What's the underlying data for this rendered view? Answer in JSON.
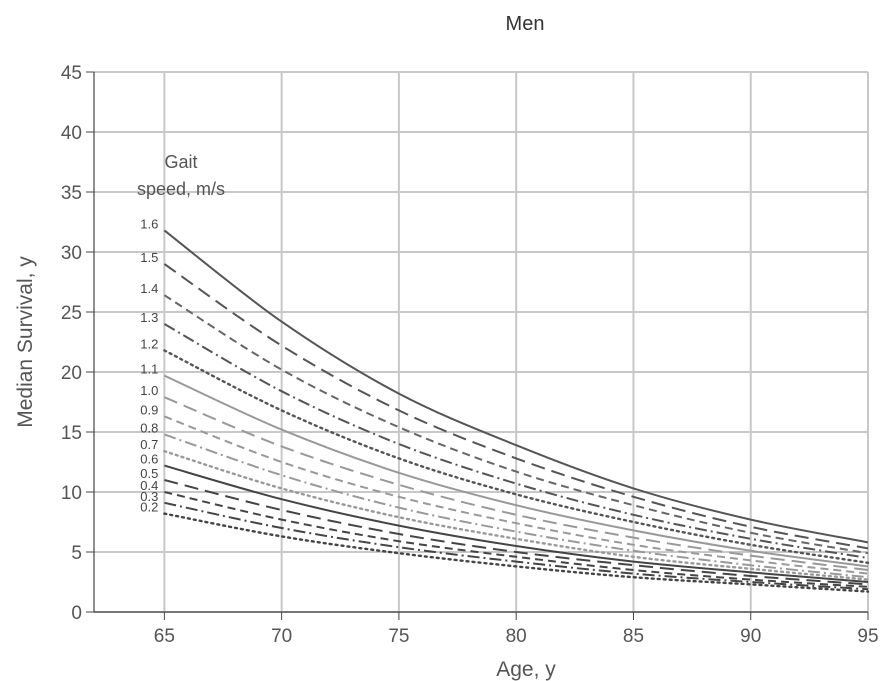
{
  "chart_data": {
    "type": "line",
    "title": "Men",
    "xlabel": "Age, y",
    "ylabel": "Median Survival, y",
    "xlim": [
      62,
      95
    ],
    "ylim": [
      0,
      45
    ],
    "x_ticks": [
      65,
      70,
      75,
      80,
      85,
      90,
      95
    ],
    "y_ticks": [
      0,
      5,
      10,
      15,
      20,
      25,
      30,
      35,
      40,
      45
    ],
    "grid": true,
    "legend_title_line1": "Gait",
    "legend_title_line2": "speed, m/s",
    "x": [
      65,
      70,
      75,
      80,
      85,
      90,
      95
    ],
    "series": [
      {
        "name": "1.6",
        "values": [
          31.8,
          24.2,
          18.2,
          13.9,
          10.3,
          7.7,
          5.8
        ],
        "color": "#555555",
        "dash": "solid"
      },
      {
        "name": "1.5",
        "values": [
          29.0,
          22.2,
          16.8,
          12.8,
          9.6,
          7.1,
          5.3
        ],
        "color": "#555555",
        "dash": "long"
      },
      {
        "name": "1.4",
        "values": [
          26.4,
          20.2,
          15.4,
          11.7,
          8.9,
          6.6,
          4.9
        ],
        "color": "#666666",
        "dash": "dash"
      },
      {
        "name": "1.3",
        "values": [
          24.0,
          18.4,
          14.0,
          10.7,
          8.1,
          6.1,
          4.5
        ],
        "color": "#555555",
        "dash": "dashdot"
      },
      {
        "name": "1.2",
        "values": [
          21.8,
          16.8,
          12.8,
          9.8,
          7.5,
          5.6,
          4.1
        ],
        "color": "#555555",
        "dash": "dot"
      },
      {
        "name": "1.1",
        "values": [
          19.7,
          15.2,
          11.6,
          8.9,
          6.8,
          5.1,
          3.8
        ],
        "color": "#999999",
        "dash": "solid"
      },
      {
        "name": "1.0",
        "values": [
          17.9,
          13.8,
          10.6,
          8.1,
          6.2,
          4.7,
          3.5
        ],
        "color": "#999999",
        "dash": "long"
      },
      {
        "name": "0.9",
        "values": [
          16.3,
          12.5,
          9.6,
          7.4,
          5.6,
          4.3,
          3.2
        ],
        "color": "#999999",
        "dash": "dash"
      },
      {
        "name": "0.8",
        "values": [
          14.8,
          11.4,
          8.7,
          6.7,
          5.1,
          3.9,
          2.9
        ],
        "color": "#999999",
        "dash": "dashdot"
      },
      {
        "name": "0.7",
        "values": [
          13.4,
          10.3,
          7.9,
          6.1,
          4.6,
          3.6,
          2.7
        ],
        "color": "#999999",
        "dash": "dot"
      },
      {
        "name": "0.6",
        "values": [
          12.2,
          9.4,
          7.2,
          5.5,
          4.2,
          3.3,
          2.5
        ],
        "color": "#444444",
        "dash": "solid"
      },
      {
        "name": "0.5",
        "values": [
          11.0,
          8.5,
          6.5,
          5.0,
          3.9,
          3.0,
          2.3
        ],
        "color": "#444444",
        "dash": "long"
      },
      {
        "name": "0.4",
        "values": [
          10.0,
          7.7,
          5.9,
          4.6,
          3.5,
          2.7,
          2.1
        ],
        "color": "#444444",
        "dash": "dash"
      },
      {
        "name": "0.3",
        "values": [
          9.1,
          7.0,
          5.4,
          4.2,
          3.2,
          2.5,
          1.9
        ],
        "color": "#444444",
        "dash": "dashdot"
      },
      {
        "name": "0.2",
        "values": [
          8.2,
          6.3,
          4.9,
          3.8,
          2.9,
          2.3,
          1.7
        ],
        "color": "#444444",
        "dash": "dot"
      }
    ]
  }
}
